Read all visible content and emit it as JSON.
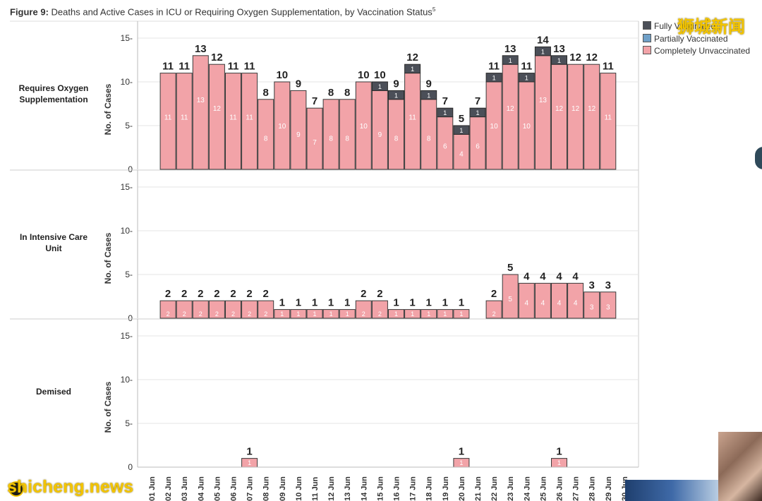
{
  "title": {
    "prefix": "Figure 9:",
    "text": "Deaths and Active Cases in ICU or Requiring Oxygen Supplementation, by Vaccination Status",
    "superscript": "5"
  },
  "colors": {
    "fully": "#4b4f58",
    "partially": "#6fa0c8",
    "unvaccinated": "#f2a3a8",
    "grid": "#e6e6e6",
    "axis": "#999999"
  },
  "watermarks": {
    "cn": "狮城新闻",
    "en": "shicheng.news"
  },
  "chart_data": {
    "type": "bar",
    "stacked": true,
    "title": "Figure 9: Deaths and Active Cases in ICU or Requiring Oxygen Supplementation, by Vaccination Status",
    "ylabel": "No. of Cases",
    "yticks": [
      0,
      5,
      10,
      15
    ],
    "ylim": [
      0,
      17
    ],
    "legend": {
      "position": "top-right",
      "items": [
        {
          "name": "Fully Vaccinated",
          "color": "#4b4f58"
        },
        {
          "name": "Partially Vaccinated",
          "color": "#6fa0c8"
        },
        {
          "name": "Completely Unvaccinated",
          "color": "#f2a3a8"
        }
      ]
    },
    "categories": [
      "01 Jun",
      "02 Jun",
      "03 Jun",
      "04 Jun",
      "05 Jun",
      "06 Jun",
      "07 Jun",
      "08 Jun",
      "09 Jun",
      "10 Jun",
      "11 Jun",
      "12 Jun",
      "13 Jun",
      "14 Jun",
      "15 Jun",
      "16 Jun",
      "17 Jun",
      "18 Jun",
      "19 Jun",
      "20 Jun",
      "21 Jun",
      "22 Jun",
      "23 Jun",
      "24 Jun",
      "25 Jun",
      "26 Jun",
      "27 Jun",
      "28 Jun",
      "29 Jun",
      "30 Jun"
    ],
    "panels": [
      {
        "name": "Requires Oxygen Supplementation",
        "unvaccinated": [
          null,
          11,
          11,
          13,
          12,
          11,
          11,
          8,
          10,
          9,
          7,
          8,
          8,
          10,
          9,
          8,
          11,
          8,
          6,
          4,
          6,
          10,
          12,
          10,
          13,
          12,
          12,
          12,
          11,
          null
        ],
        "fully": [
          null,
          0,
          0,
          0,
          0,
          0,
          0,
          0,
          0,
          0,
          0,
          0,
          0,
          0,
          1,
          1,
          1,
          1,
          1,
          1,
          1,
          1,
          1,
          1,
          1,
          1,
          0,
          0,
          0,
          null
        ],
        "totals": [
          null,
          11,
          11,
          13,
          12,
          11,
          11,
          8,
          10,
          9,
          7,
          8,
          8,
          10,
          10,
          9,
          12,
          9,
          7,
          5,
          7,
          11,
          13,
          11,
          14,
          13,
          12,
          12,
          11,
          null
        ]
      },
      {
        "name": "In Intensive Care Unit",
        "unvaccinated": [
          null,
          2,
          2,
          2,
          2,
          2,
          2,
          2,
          1,
          1,
          1,
          1,
          1,
          2,
          2,
          1,
          1,
          1,
          1,
          1,
          null,
          2,
          5,
          4,
          4,
          4,
          4,
          3,
          3,
          null
        ],
        "fully": [
          null,
          0,
          0,
          0,
          0,
          0,
          0,
          0,
          0,
          0,
          0,
          0,
          0,
          0,
          0,
          0,
          0,
          0,
          0,
          0,
          null,
          0,
          0,
          0,
          0,
          0,
          0,
          0,
          0,
          null
        ],
        "totals": [
          null,
          2,
          2,
          2,
          2,
          2,
          2,
          2,
          1,
          1,
          1,
          1,
          1,
          2,
          2,
          1,
          1,
          1,
          1,
          1,
          null,
          2,
          5,
          4,
          4,
          4,
          4,
          3,
          3,
          null
        ]
      },
      {
        "name": "Demised",
        "unvaccinated": [
          null,
          null,
          null,
          null,
          null,
          null,
          1,
          null,
          null,
          null,
          null,
          null,
          null,
          null,
          null,
          null,
          null,
          null,
          null,
          1,
          null,
          null,
          null,
          null,
          null,
          1,
          null,
          null,
          null,
          null
        ],
        "fully": [
          null,
          null,
          null,
          null,
          null,
          null,
          0,
          null,
          null,
          null,
          null,
          null,
          null,
          null,
          null,
          null,
          null,
          null,
          null,
          0,
          null,
          null,
          null,
          null,
          null,
          0,
          null,
          null,
          null,
          null
        ],
        "totals": [
          null,
          null,
          null,
          null,
          null,
          null,
          1,
          null,
          null,
          null,
          null,
          null,
          null,
          null,
          null,
          null,
          null,
          null,
          null,
          1,
          null,
          null,
          null,
          null,
          null,
          1,
          null,
          null,
          null,
          null
        ]
      }
    ]
  }
}
